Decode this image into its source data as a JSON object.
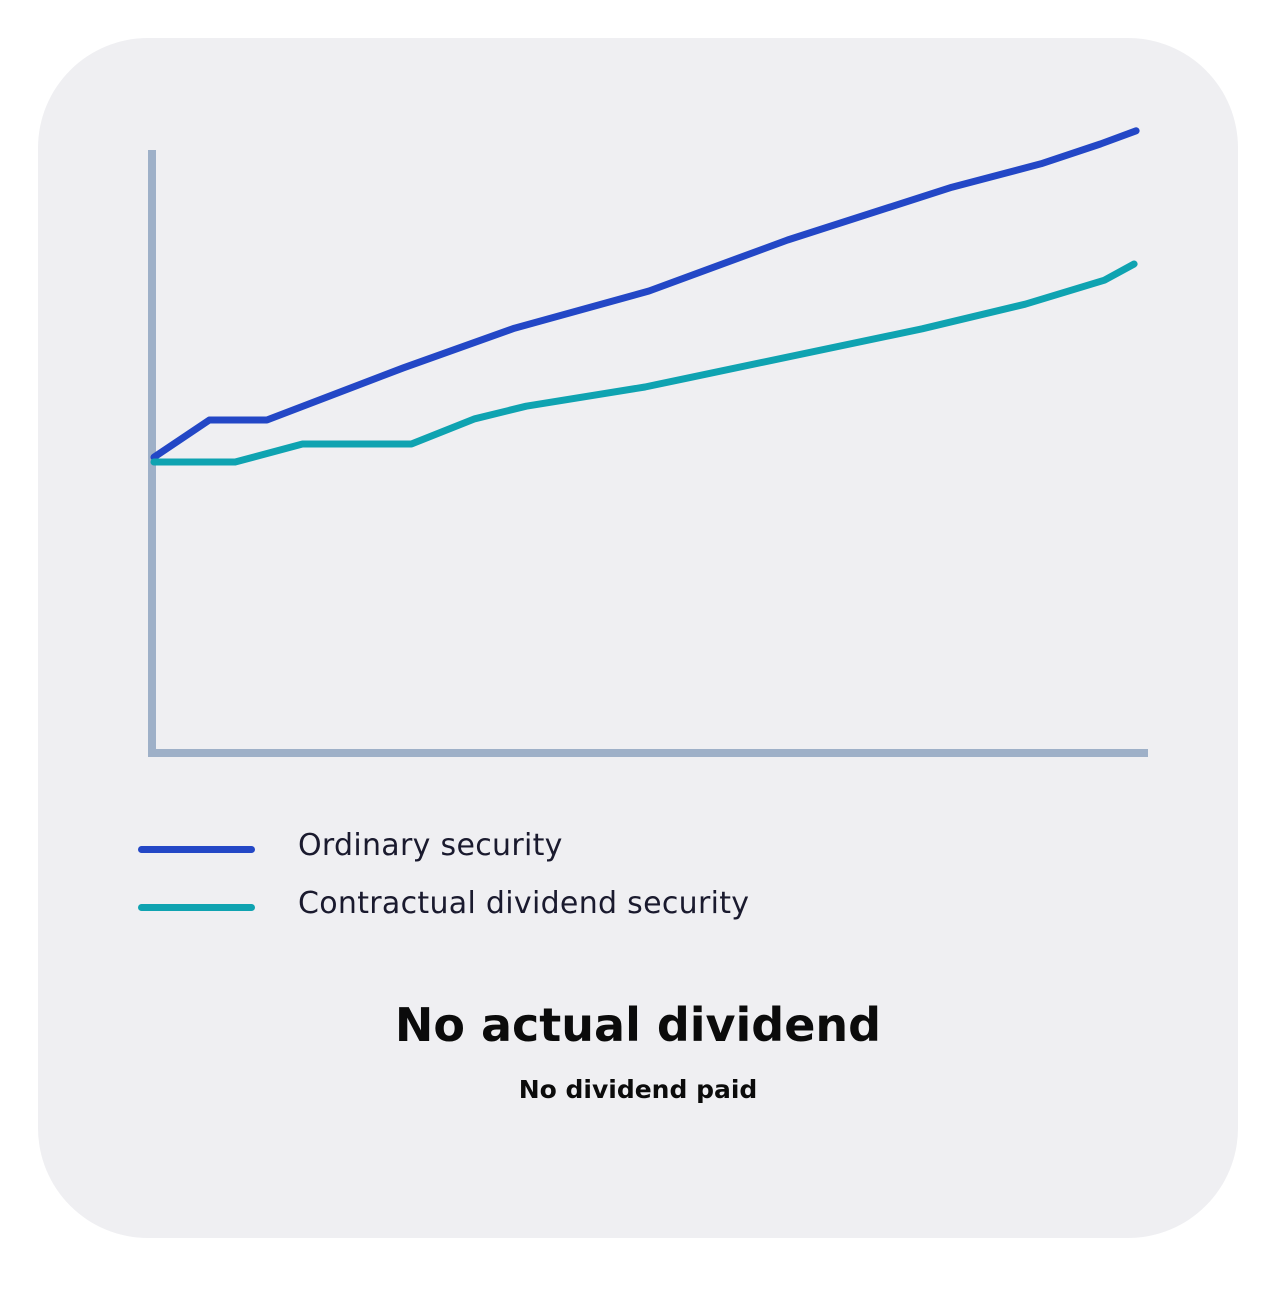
{
  "chart_data": {
    "type": "line",
    "title": "No actual dividend",
    "subtitle": "No dividend paid",
    "xlabel": "",
    "ylabel": "",
    "grid": false,
    "legend_placement": "bottom-left",
    "xlim": [
      0,
      100
    ],
    "ylim": [
      0,
      100
    ],
    "series": [
      {
        "name": "Ordinary security",
        "color": "#2347c6",
        "x": [
          0,
          5.6,
          11.4,
          25.2,
          36.4,
          50.0,
          64.0,
          80.6,
          89.6,
          95.6,
          99.2
        ],
        "y": [
          48.8,
          55.0,
          55.0,
          63.7,
          70.3,
          76.5,
          85.0,
          93.8,
          97.7,
          101.0,
          103.2
        ]
      },
      {
        "name": "Contractual dividend security",
        "color": "#0fa3b1",
        "x": [
          0,
          8.2,
          15.0,
          26.0,
          32.4,
          37.6,
          49.6,
          77.6,
          88.0,
          96.0,
          99.0
        ],
        "y": [
          48.0,
          48.0,
          51.0,
          51.0,
          55.2,
          57.3,
          60.5,
          70.2,
          74.3,
          78.3,
          81.0
        ]
      }
    ]
  }
}
